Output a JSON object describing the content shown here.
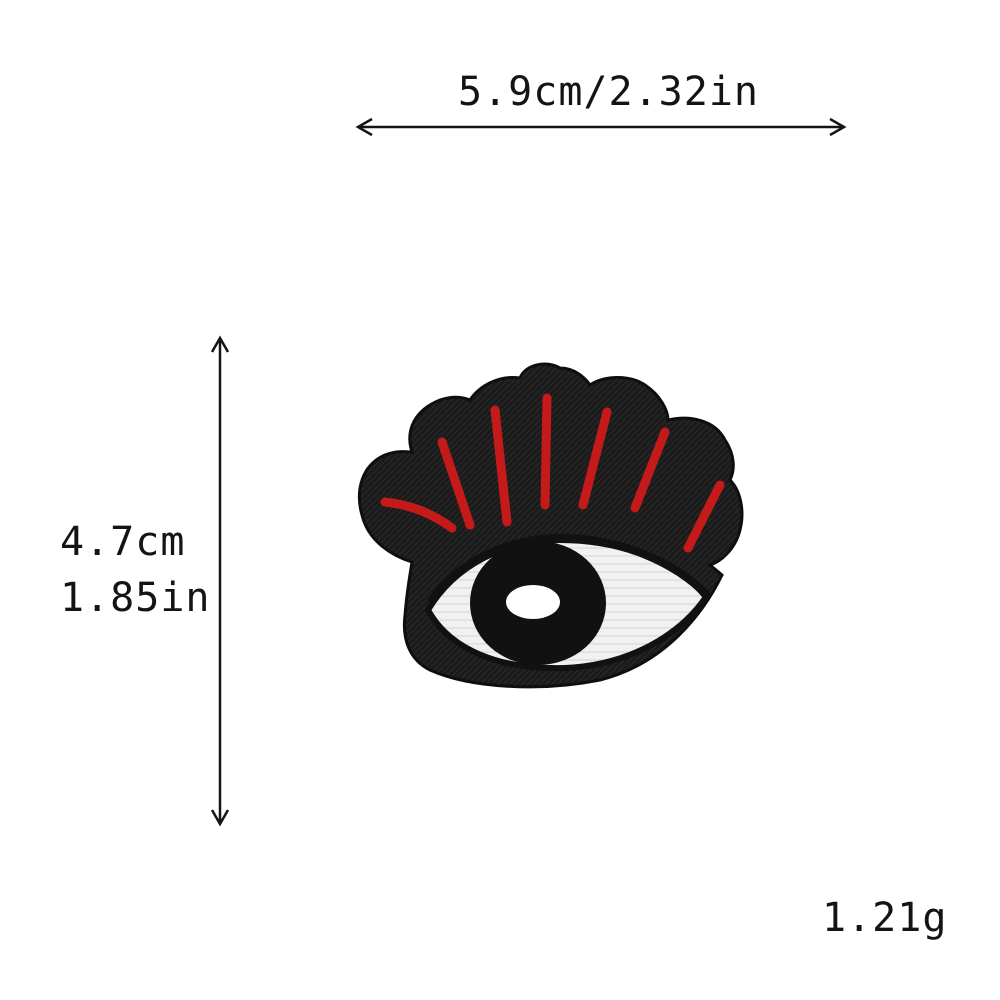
{
  "dimensions": {
    "width_label": "5.9cm/2.32in",
    "height_cm": "4.7cm",
    "height_in": "1.85in",
    "weight": "1.21g"
  },
  "patch": {
    "subject": "embroidered eye patch",
    "colors": {
      "border": "#1a1a1a",
      "lashes": "#c41a1a",
      "eye_white": "#f2f2f2",
      "iris": "#111111",
      "highlight": "#ffffff"
    }
  },
  "arrow_color": "#141414"
}
